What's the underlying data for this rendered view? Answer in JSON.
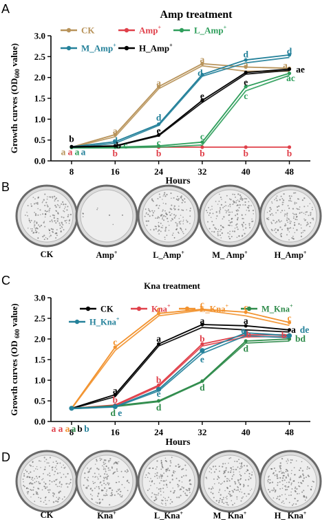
{
  "panels": {
    "A": "A",
    "B": "B",
    "C": "C",
    "D": "D"
  },
  "chart_data": [
    {
      "type": "line",
      "title": "Amp treatment",
      "xlabel": "Hours",
      "ylabel": "Growth curves (OD600 value)",
      "x": [
        8,
        16,
        24,
        32,
        40,
        48
      ],
      "ylim": [
        0,
        3
      ],
      "yticks": [
        "0.0",
        "0.5",
        "1.0",
        "1.5",
        "2.0",
        "2.5",
        "3.0"
      ],
      "legend": [
        "CK",
        "Amp+",
        "L_Amp+",
        "M_Amp+",
        "H_Amp+"
      ],
      "series": [
        {
          "name": "CK",
          "color": "#B8935A",
          "values": [
            0.33,
            0.63,
            1.78,
            2.33,
            2.25,
            2.22
          ],
          "values2": [
            0.32,
            0.58,
            1.73,
            2.28,
            2.15,
            2.15
          ]
        },
        {
          "name": "Amp+",
          "color": "#E0404A",
          "values": [
            0.33,
            0.33,
            0.33,
            0.33,
            0.33,
            0.33
          ]
        },
        {
          "name": "L_Amp+",
          "color": "#2E9E5B",
          "values": [
            0.32,
            0.33,
            0.36,
            0.45,
            1.78,
            2.1
          ],
          "values2": [
            0.31,
            0.31,
            0.33,
            0.38,
            1.68,
            2.05
          ]
        },
        {
          "name": "M_Amp+",
          "color": "#24819A",
          "values": [
            0.34,
            0.46,
            0.88,
            2.07,
            2.42,
            2.54
          ],
          "values2": [
            0.32,
            0.42,
            0.85,
            2.03,
            2.35,
            2.48
          ]
        },
        {
          "name": "H_Amp+",
          "color": "#000000",
          "values": [
            0.34,
            0.36,
            0.62,
            1.45,
            2.12,
            2.2
          ],
          "values2": [
            0.33,
            0.35,
            0.6,
            1.4,
            2.08,
            2.17
          ]
        }
      ],
      "letters": [
        {
          "x": 8,
          "y": 0.52,
          "t": "b",
          "c": "#000000"
        },
        {
          "x": 8,
          "y": 0.21,
          "t": "a",
          "c": "#B8935A",
          "dx": -12
        },
        {
          "x": 8,
          "y": 0.21,
          "t": "a",
          "c": "#E0404A",
          "dx": -2
        },
        {
          "x": 8,
          "y": 0.21,
          "t": "a",
          "c": "#2E9E5B",
          "dx": 8
        },
        {
          "x": 8,
          "y": 0.21,
          "t": "a",
          "c": "#24819A",
          "dx": 17
        },
        {
          "x": 16,
          "y": 0.71,
          "t": "a",
          "c": "#B8935A"
        },
        {
          "x": 16,
          "y": 0.48,
          "t": "d",
          "c": "#24819A"
        },
        {
          "x": 16,
          "y": 0.36,
          "t": "b",
          "c": "#000000",
          "dx": 5
        },
        {
          "x": 16,
          "y": 0.36,
          "t": "c",
          "c": "#2E9E5B",
          "dx": 15
        },
        {
          "x": 16,
          "y": 0.17,
          "t": "b",
          "c": "#E0404A"
        },
        {
          "x": 24,
          "y": 1.86,
          "t": "a",
          "c": "#B8935A"
        },
        {
          "x": 24,
          "y": 1.03,
          "t": "d",
          "c": "#24819A"
        },
        {
          "x": 24,
          "y": 0.72,
          "t": "e",
          "c": "#000000"
        },
        {
          "x": 24,
          "y": 0.43,
          "t": "c",
          "c": "#2E9E5B"
        },
        {
          "x": 24,
          "y": 0.17,
          "t": "b",
          "c": "#E0404A"
        },
        {
          "x": 32,
          "y": 2.42,
          "t": "a",
          "c": "#B8935A"
        },
        {
          "x": 32,
          "y": 2.1,
          "t": "d",
          "c": "#24819A",
          "dx": -3
        },
        {
          "x": 32,
          "y": 1.55,
          "t": "e",
          "c": "#000000"
        },
        {
          "x": 32,
          "y": 0.58,
          "t": "c",
          "c": "#2E9E5B"
        },
        {
          "x": 32,
          "y": 0.17,
          "t": "b",
          "c": "#E0404A"
        },
        {
          "x": 40,
          "y": 2.55,
          "t": "d",
          "c": "#24819A"
        },
        {
          "x": 40,
          "y": 2.3,
          "t": "a",
          "c": "#B8935A"
        },
        {
          "x": 40,
          "y": 1.88,
          "t": "e",
          "c": "#000000"
        },
        {
          "x": 40,
          "y": 1.55,
          "t": "c",
          "c": "#2E9E5B"
        },
        {
          "x": 40,
          "y": 0.17,
          "t": "b",
          "c": "#E0404A"
        },
        {
          "x": 48,
          "y": 2.62,
          "t": "d",
          "c": "#24819A"
        },
        {
          "x": 48,
          "y": 2.28,
          "t": "a",
          "c": "#B8935A",
          "dx": -6
        },
        {
          "x": 48,
          "y": 2.18,
          "t": "ae",
          "c": "#000000",
          "dx": 16
        },
        {
          "x": 48,
          "y": 1.98,
          "t": "ac",
          "c": "#2E9E5B",
          "dx": 2
        },
        {
          "x": 48,
          "y": 0.17,
          "t": "b",
          "c": "#E0404A"
        }
      ]
    },
    {
      "type": "line",
      "title": "Kna treatment",
      "xlabel": "Hours",
      "ylabel": "Growth curves (OD 600 value)",
      "x": [
        8,
        16,
        24,
        32,
        40,
        48
      ],
      "ylim": [
        0,
        3
      ],
      "yticks": [
        "0.0",
        "0.5",
        "1.0",
        "1.5",
        "2.0",
        "2.5",
        "3.0"
      ],
      "legend": [
        "CK",
        "Kna+",
        "L_Kna+",
        "M_Kna+",
        "H_Kna+"
      ],
      "series": [
        {
          "name": "CK",
          "color": "#000000",
          "values": [
            0.32,
            0.65,
            1.88,
            2.35,
            2.32,
            2.22
          ],
          "values2": [
            0.31,
            0.6,
            1.83,
            2.28,
            2.22,
            2.17
          ]
        },
        {
          "name": "Kna+",
          "color": "#E0404A",
          "values": [
            0.32,
            0.4,
            0.88,
            1.88,
            2.1,
            2.1
          ],
          "values2": [
            0.31,
            0.38,
            0.85,
            1.83,
            2.05,
            2.06
          ]
        },
        {
          "name": "L_Kna+",
          "color": "#F2922E",
          "values": [
            0.32,
            1.8,
            2.62,
            2.72,
            2.65,
            2.4
          ],
          "values2": [
            0.31,
            1.72,
            2.56,
            2.7,
            2.56,
            2.33
          ]
        },
        {
          "name": "M_Kna+",
          "color": "#2E8B4A",
          "values": [
            0.32,
            0.38,
            0.5,
            0.98,
            1.95,
            2.0
          ],
          "values2": [
            0.31,
            0.36,
            0.48,
            0.96,
            1.9,
            1.95
          ]
        },
        {
          "name": "H_Kna+",
          "color": "#24819A",
          "values": [
            0.32,
            0.36,
            0.78,
            1.72,
            2.15,
            2.08
          ],
          "values2": [
            0.31,
            0.35,
            0.74,
            1.65,
            2.08,
            2.03
          ],
          "markers": true
        }
      ],
      "letters": [
        {
          "x": 8,
          "y": -0.18,
          "t": "a",
          "c": "#E0404A",
          "dx": -26
        },
        {
          "x": 8,
          "y": -0.18,
          "t": "a",
          "c": "#E0404A",
          "dx": -16
        },
        {
          "x": 8,
          "y": -0.18,
          "t": "a",
          "c": "#F2922E",
          "dx": -6
        },
        {
          "x": 8,
          "y": -0.18,
          "t": "a",
          "c": "#2E8B4A",
          "dx": 3
        },
        {
          "x": 8,
          "y": -0.18,
          "t": "b",
          "c": "#000000",
          "dx": 12
        },
        {
          "x": 8,
          "y": -0.18,
          "t": "b",
          "c": "#24819A",
          "dx": 22
        },
        {
          "x": 16,
          "y": 1.92,
          "t": "c",
          "c": "#F2922E"
        },
        {
          "x": 16,
          "y": 0.74,
          "t": "a",
          "c": "#000000"
        },
        {
          "x": 16,
          "y": 0.52,
          "t": "b",
          "c": "#E0404A"
        },
        {
          "x": 16,
          "y": 0.2,
          "t": "d",
          "c": "#2E8B4A",
          "dx": -3
        },
        {
          "x": 16,
          "y": 0.2,
          "t": "e",
          "c": "#24819A",
          "dx": 7
        },
        {
          "x": 24,
          "y": 2.72,
          "t": "c",
          "c": "#F2922E"
        },
        {
          "x": 24,
          "y": 2.0,
          "t": "a",
          "c": "#000000"
        },
        {
          "x": 24,
          "y": 1.0,
          "t": "b",
          "c": "#E0404A"
        },
        {
          "x": 24,
          "y": 0.67,
          "t": "e",
          "c": "#24819A"
        },
        {
          "x": 24,
          "y": 0.33,
          "t": "d",
          "c": "#2E8B4A"
        },
        {
          "x": 32,
          "y": 2.83,
          "t": "c",
          "c": "#F2922E"
        },
        {
          "x": 32,
          "y": 2.43,
          "t": "a",
          "c": "#000000"
        },
        {
          "x": 32,
          "y": 2.0,
          "t": "b",
          "c": "#E0404A"
        },
        {
          "x": 32,
          "y": 1.5,
          "t": "e",
          "c": "#24819A"
        },
        {
          "x": 32,
          "y": 0.82,
          "t": "d",
          "c": "#2E8B4A"
        },
        {
          "x": 40,
          "y": 2.76,
          "t": "c",
          "c": "#F2922E"
        },
        {
          "x": 40,
          "y": 2.43,
          "t": "a",
          "c": "#000000"
        },
        {
          "x": 40,
          "y": 2.2,
          "t": "e",
          "c": "#24819A",
          "dx": -4
        },
        {
          "x": 40,
          "y": 2.1,
          "t": "b",
          "c": "#E0404A",
          "dx": 4
        },
        {
          "x": 40,
          "y": 1.76,
          "t": "d",
          "c": "#2E8B4A"
        },
        {
          "x": 48,
          "y": 2.5,
          "t": "c",
          "c": "#F2922E"
        },
        {
          "x": 48,
          "y": 2.22,
          "t": "a",
          "c": "#000000",
          "dx": 6
        },
        {
          "x": 48,
          "y": 2.22,
          "t": "de",
          "c": "#24819A",
          "dx": 22
        },
        {
          "x": 48,
          "y": 2.0,
          "t": "bd",
          "c": "#2E8B4A",
          "dx": 16
        },
        {
          "x": 48,
          "y": 2.08,
          "t": "b",
          "c": "#E0404A",
          "dx": -8
        }
      ]
    }
  ],
  "plates_B": [
    {
      "name": "CK",
      "sup": ""
    },
    {
      "name": "Amp",
      "sup": "+"
    },
    {
      "name": "L_Amp",
      "sup": "+"
    },
    {
      "name": "M_ Amp",
      "sup": "+"
    },
    {
      "name": "H_Amp",
      "sup": "+"
    }
  ],
  "plates_D": [
    {
      "name": "CK",
      "sup": ""
    },
    {
      "name": "Kna",
      "sup": "+"
    },
    {
      "name": "L_Kna",
      "sup": "+"
    },
    {
      "name": "M_ Kna",
      "sup": "+"
    },
    {
      "name": "H_ Kna",
      "sup": "+"
    }
  ]
}
